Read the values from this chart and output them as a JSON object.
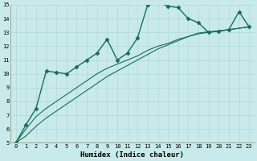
{
  "title": "",
  "xlabel": "Humidex (Indice chaleur)",
  "ylabel": "",
  "xlim": [
    -0.5,
    23.5
  ],
  "ylim": [
    5,
    15
  ],
  "background_color": "#c8eaea",
  "grid_color": "#b0d8d8",
  "line_color": "#1a6b5a",
  "series": [
    {
      "x": [
        0,
        1,
        2,
        3,
        4,
        5,
        6,
        7,
        8,
        9,
        10,
        11,
        12,
        13,
        14,
        15,
        16,
        17,
        18,
        19,
        20,
        21,
        22,
        23
      ],
      "y": [
        5.0,
        6.3,
        7.5,
        10.2,
        10.1,
        10.0,
        10.5,
        11.0,
        11.5,
        12.5,
        11.0,
        11.5,
        12.6,
        15.0,
        15.2,
        14.9,
        14.8,
        14.0,
        13.7,
        13.0,
        13.1,
        13.2,
        14.5,
        13.4
      ],
      "marker": "D",
      "markersize": 2.5,
      "linewidth": 1.0
    },
    {
      "x": [
        0,
        1,
        2,
        3,
        4,
        5,
        6,
        7,
        8,
        9,
        10,
        11,
        12,
        13,
        14,
        15,
        16,
        17,
        18,
        19,
        20,
        21,
        22,
        23
      ],
      "y": [
        5.0,
        6.0,
        6.9,
        7.5,
        8.0,
        8.5,
        9.0,
        9.5,
        10.0,
        10.4,
        10.7,
        11.0,
        11.3,
        11.7,
        12.0,
        12.2,
        12.5,
        12.7,
        12.9,
        13.0,
        13.1,
        13.2,
        13.3,
        13.4
      ],
      "marker": null,
      "markersize": 0,
      "linewidth": 0.8
    },
    {
      "x": [
        0,
        1,
        2,
        3,
        4,
        5,
        6,
        7,
        8,
        9,
        10,
        11,
        12,
        13,
        14,
        15,
        16,
        17,
        18,
        19,
        20,
        21,
        22,
        23
      ],
      "y": [
        5.0,
        5.5,
        6.2,
        6.8,
        7.3,
        7.8,
        8.3,
        8.8,
        9.3,
        9.8,
        10.2,
        10.6,
        11.0,
        11.4,
        11.8,
        12.1,
        12.4,
        12.7,
        12.95,
        13.05,
        13.1,
        13.2,
        13.3,
        13.4
      ],
      "marker": null,
      "markersize": 0,
      "linewidth": 0.8
    }
  ],
  "yticks": [
    5,
    6,
    7,
    8,
    9,
    10,
    11,
    12,
    13,
    14,
    15
  ],
  "xticks": [
    0,
    1,
    2,
    3,
    4,
    5,
    6,
    7,
    8,
    9,
    10,
    11,
    12,
    13,
    14,
    15,
    16,
    17,
    18,
    19,
    20,
    21,
    22,
    23
  ],
  "tick_fontsize": 5,
  "xlabel_fontsize": 6.5
}
